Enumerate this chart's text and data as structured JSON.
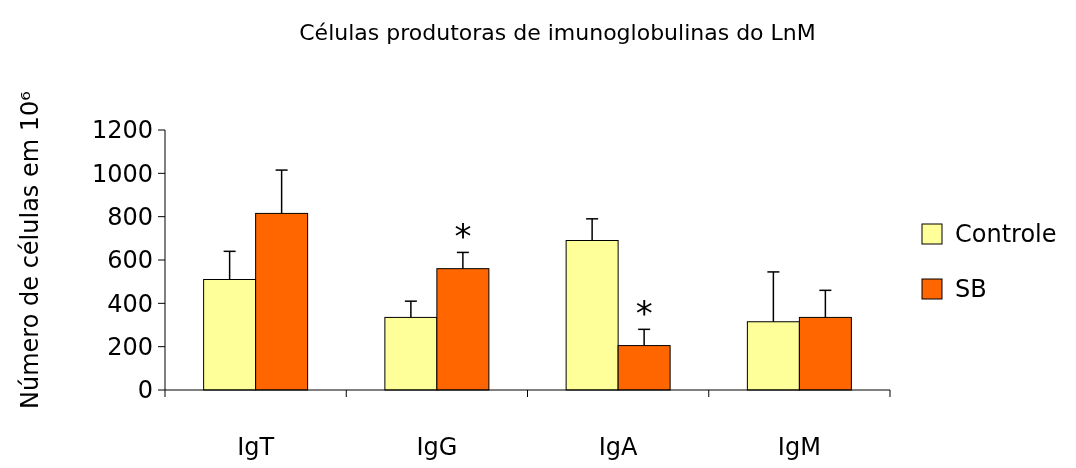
{
  "chart_data": {
    "type": "bar",
    "title": "Células produtoras de imunoglobulinas do LnM",
    "ylabel": "Número de células em 10⁶",
    "categories": [
      "IgT",
      "IgG",
      "IgA",
      "IgM"
    ],
    "series": [
      {
        "name": "Controle",
        "color": "#ffff99",
        "values": [
          510,
          335,
          690,
          315
        ],
        "errors": [
          130,
          75,
          100,
          230
        ]
      },
      {
        "name": "SB",
        "color": "#ff6600",
        "values": [
          815,
          560,
          205,
          335
        ],
        "errors": [
          200,
          75,
          75,
          125
        ]
      }
    ],
    "ylim": [
      0,
      1200
    ],
    "yticks": [
      0,
      200,
      400,
      600,
      800,
      1000,
      1200
    ],
    "grid": false,
    "legend": "right",
    "annotations": [
      {
        "text": "*",
        "x": "IgG",
        "y": 560
      },
      {
        "text": "*",
        "x": "IgA",
        "y": 205
      }
    ]
  }
}
